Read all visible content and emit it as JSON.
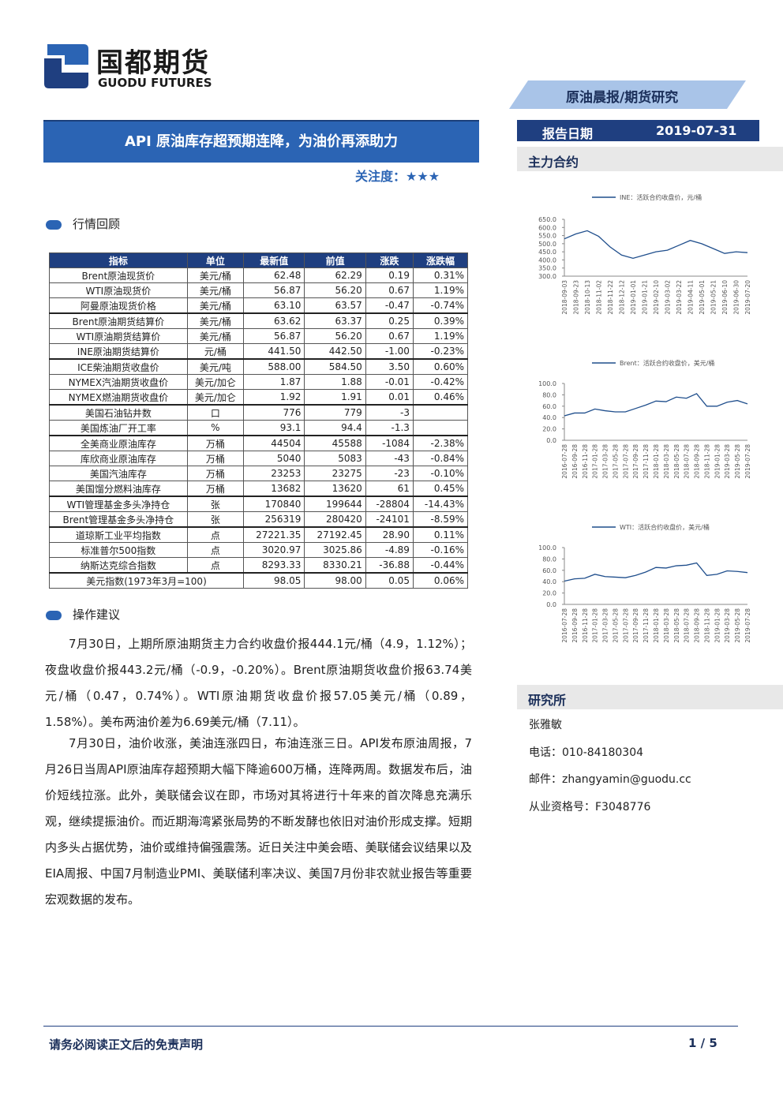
{
  "header": {
    "logo_cn": "国都期货",
    "logo_en": "GUODU FUTURES",
    "tag": "原油晨报/期货研究",
    "report_date_label": "报告日期",
    "report_date": "2019-07-31"
  },
  "title": "API 原油库存超预期连降，为油价再添助力",
  "attention": "关注度：★★★",
  "section1": "行情回顾",
  "table": {
    "headers": [
      "指标",
      "单位",
      "最新值",
      "前值",
      "涨跌",
      "涨跌幅"
    ],
    "groups": [
      [
        [
          "Brent原油现货价",
          "美元/桶",
          "62.48",
          "62.29",
          "0.19",
          "0.31%"
        ],
        [
          "WTI原油现货价",
          "美元/桶",
          "56.87",
          "56.20",
          "0.67",
          "1.19%"
        ],
        [
          "阿曼原油现货价格",
          "美元/桶",
          "63.10",
          "63.57",
          "-0.47",
          "-0.74%"
        ]
      ],
      [
        [
          "Brent原油期货结算价",
          "美元/桶",
          "63.62",
          "63.37",
          "0.25",
          "0.39%"
        ],
        [
          "WTI原油期货结算价",
          "美元/桶",
          "56.87",
          "56.20",
          "0.67",
          "1.19%"
        ],
        [
          "INE原油期货结算价",
          "元/桶",
          "441.50",
          "442.50",
          "-1.00",
          "-0.23%"
        ]
      ],
      [
        [
          "ICE柴油期货收盘价",
          "美元/吨",
          "588.00",
          "584.50",
          "3.50",
          "0.60%"
        ],
        [
          "NYMEX汽油期货收盘价",
          "美元/加仑",
          "1.87",
          "1.88",
          "-0.01",
          "-0.42%"
        ],
        [
          "NYMEX燃油期货收盘价",
          "美元/加仑",
          "1.92",
          "1.91",
          "0.01",
          "0.46%"
        ]
      ],
      [
        [
          "美国石油钻井数",
          "口",
          "776",
          "779",
          "-3",
          null
        ],
        [
          "美国炼油厂开工率",
          "%",
          "93.1",
          "94.4",
          "-1.3",
          null
        ]
      ],
      [
        [
          "全美商业原油库存",
          "万桶",
          "44504",
          "45588",
          "-1084",
          "-2.38%"
        ],
        [
          "库欣商业原油库存",
          "万桶",
          "5040",
          "5083",
          "-43",
          "-0.84%"
        ],
        [
          "美国汽油库存",
          "万桶",
          "23253",
          "23275",
          "-23",
          "-0.10%"
        ],
        [
          "美国馏分燃料油库存",
          "万桶",
          "13682",
          "13620",
          "61",
          "0.45%"
        ]
      ],
      [
        [
          "WTI管理基金多头净持仓",
          "张",
          "170840",
          "199644",
          "-28804",
          "-14.43%"
        ],
        [
          "Brent管理基金多头净持仓",
          "张",
          "256319",
          "280420",
          "-24101",
          "-8.59%"
        ]
      ],
      [
        [
          "道琼斯工业平均指数",
          "点",
          "27221.35",
          "27192.45",
          "28.90",
          "0.11%"
        ],
        [
          "标准普尔500指数",
          "点",
          "3020.97",
          "3025.86",
          "-4.89",
          "-0.16%"
        ],
        [
          "纳斯达克综合指数",
          "点",
          "8293.33",
          "8330.21",
          "-36.88",
          "-0.44%"
        ]
      ],
      [
        [
          "美元指数(1973年3月=100)",
          null,
          "98.05",
          "98.00",
          "0.05",
          "0.06%"
        ]
      ]
    ]
  },
  "section2": "操作建议",
  "paragraphs": [
    "7月30日，上期所原油期货主力合约收盘价报444.1元/桶（4.9，1.12%）；夜盘收盘价报443.2元/桶（-0.9，-0.20%）。Brent原油期货收盘价报63.74美元/桶（0.47，0.74%）。WTI原油期货收盘价报57.05美元/桶（0.89，1.58%）。美布两油价差为6.69美元/桶（7.11）。",
    "7月30日，油价收涨，美油连涨四日，布油连涨三日。API发布原油周报，7月26日当周API原油库存超预期大幅下降逾600万桶，连降两周。数据发布后，油价短线拉涨。此外，美联储会议在即，市场对其将进行十年来的首次降息充满乐观，继续提振油价。而近期海湾紧张局势的不断发酵也依旧对油价形成支撑。短期内多头占据优势，油价或维持偏强震荡。近日关注中美会晤、美联储会议结果以及EIA周报、中国7月制造业PMI、美联储利率决议、美国7月份非农就业报告等重要宏观数据的发布。"
  ],
  "sidebar": {
    "contracts": "主力合约",
    "institute": "研究所",
    "name": "张雅敏",
    "phone": "电话：010-84180304",
    "email": "邮件：zhangyamin@guodu.cc",
    "license": "从业资格号：F3048776"
  },
  "chart_data": [
    {
      "type": "line",
      "legend": "INE：活跃合约收盘价，元/桶",
      "color": "#1f4e8c",
      "categories": [
        "2018-09-03",
        "2018-09-23",
        "2018-10-13",
        "2018-11-02",
        "2018-11-22",
        "2018-12-12",
        "2019-01-01",
        "2019-01-21",
        "2019-02-10",
        "2019-03-02",
        "2019-03-22",
        "2019-04-11",
        "2019-05-01",
        "2019-05-21",
        "2019-06-10",
        "2019-06-30",
        "2019-07-20"
      ],
      "values": [
        530,
        560,
        580,
        545,
        480,
        430,
        410,
        430,
        450,
        460,
        490,
        520,
        500,
        470,
        440,
        450,
        445
      ],
      "ylim": [
        300,
        650
      ],
      "yticks": [
        {
          "value": 300,
          "label": "300.0"
        },
        {
          "value": 350,
          "label": "350.0"
        },
        {
          "value": 400,
          "label": "400.0"
        },
        {
          "value": 450,
          "label": "450.0"
        },
        {
          "value": 500,
          "label": "500.0"
        },
        {
          "value": 550,
          "label": "550.0"
        },
        {
          "value": 600,
          "label": "600.0"
        },
        {
          "value": 650,
          "label": "650.0"
        }
      ]
    },
    {
      "type": "line",
      "legend": "Brent：活跃合约收盘价，美元/桶",
      "color": "#1f4e8c",
      "categories": [
        "2016-07-28",
        "2016-09-28",
        "2016-11-28",
        "2017-01-28",
        "2017-03-28",
        "2017-05-28",
        "2017-07-28",
        "2017-09-28",
        "2017-11-28",
        "2018-01-28",
        "2018-03-28",
        "2018-05-28",
        "2018-07-28",
        "2018-09-28",
        "2018-11-28",
        "2019-01-28",
        "2019-03-28",
        "2019-05-28",
        "2019-07-28"
      ],
      "values": [
        43,
        48,
        48,
        55,
        52,
        50,
        50,
        56,
        62,
        69,
        68,
        76,
        74,
        82,
        60,
        60,
        67,
        70,
        64
      ],
      "ylim": [
        0,
        100
      ],
      "yticks": [
        {
          "value": 0,
          "label": "0.0"
        },
        {
          "value": 20,
          "label": "20.0"
        },
        {
          "value": 40,
          "label": "40.0"
        },
        {
          "value": 60,
          "label": "60.0"
        },
        {
          "value": 80,
          "label": "80.0"
        },
        {
          "value": 100,
          "label": "100.0"
        }
      ]
    },
    {
      "type": "line",
      "legend": "WTI：活跃合约收盘价，美元/桶",
      "color": "#1f4e8c",
      "categories": [
        "2016-07-28",
        "2016-09-28",
        "2016-11-28",
        "2017-01-28",
        "2017-03-28",
        "2017-05-28",
        "2017-07-28",
        "2017-09-28",
        "2017-11-28",
        "2018-01-28",
        "2018-03-28",
        "2018-05-28",
        "2018-07-28",
        "2018-09-28",
        "2018-11-28",
        "2019-01-28",
        "2019-03-28",
        "2019-05-28",
        "2019-07-28"
      ],
      "values": [
        41,
        45,
        46,
        53,
        49,
        48,
        47,
        51,
        57,
        65,
        64,
        68,
        69,
        73,
        51,
        53,
        59,
        58,
        56
      ],
      "ylim": [
        0,
        100
      ],
      "yticks": [
        {
          "value": 0,
          "label": "0.0"
        },
        {
          "value": 20,
          "label": "20.0"
        },
        {
          "value": 40,
          "label": "40.0"
        },
        {
          "value": 60,
          "label": "60.0"
        },
        {
          "value": 80,
          "label": "80.0"
        },
        {
          "value": 100,
          "label": "100.0"
        }
      ]
    }
  ],
  "footer": {
    "disclaimer": "请务必阅读正文后的免责声明",
    "page": "1 / 5"
  }
}
